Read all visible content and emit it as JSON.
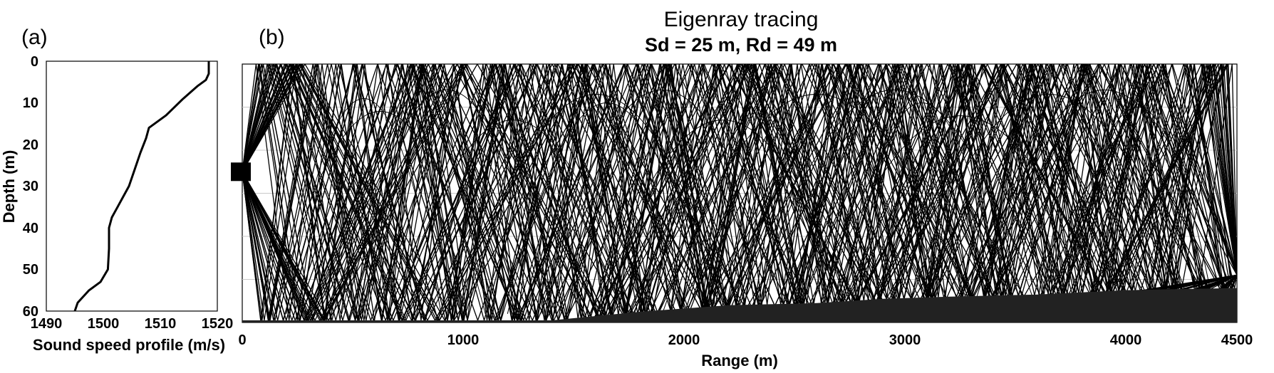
{
  "panels": {
    "a": {
      "label": "(a)"
    },
    "b": {
      "label": "(b)"
    }
  },
  "chart_data": [
    {
      "panel": "a",
      "type": "line",
      "title": "",
      "xlabel": "Sound speed profile (m/s)",
      "ylabel": "Depth (m)",
      "xlim": [
        1490,
        1520
      ],
      "ylim": [
        60,
        0
      ],
      "y_inverted": true,
      "xticks": [
        "1490",
        "1500",
        "1510",
        "1520"
      ],
      "yticks": [
        "0",
        "10",
        "20",
        "30",
        "40",
        "50",
        "60"
      ],
      "grid": false,
      "series": [
        {
          "color": "#000000",
          "x": [
            1518.5,
            1518.5,
            1518.0,
            1516.5,
            1514.0,
            1511.0,
            1508.0,
            1507.5,
            1506.5,
            1505.5,
            1504.5,
            1503.5,
            1502.5,
            1501.5,
            1501.0,
            1501.0,
            1500.8,
            1499.5,
            1497.5,
            1495.5,
            1495.0
          ],
          "y": [
            0,
            3,
            4.5,
            6,
            9,
            13,
            16,
            18.5,
            22,
            26,
            30,
            32.5,
            35,
            37.5,
            40,
            45,
            50,
            53,
            55,
            58,
            60
          ]
        }
      ]
    },
    {
      "panel": "b",
      "type": "line",
      "title": "Eigenray tracing",
      "subtitle": "Sd = 25 m, Rd = 49 m",
      "xlabel": "Range (m)",
      "ylabel": "",
      "xlim": [
        0,
        4500
      ],
      "ylim": [
        60,
        0
      ],
      "y_inverted": true,
      "xticks": [
        "0",
        "1000",
        "2000",
        "3000",
        "4000",
        "4500"
      ],
      "grid": true,
      "source": {
        "range_m": 0,
        "depth_m": 25
      },
      "receiver": {
        "range_m": 4500,
        "depth_m": 49
      },
      "bathymetry": {
        "range": [
          0,
          1400,
          1800,
          2200,
          2600,
          2900,
          3200,
          3600,
          4000,
          4500
        ],
        "depth": [
          59.5,
          59.5,
          57.5,
          56,
          55.5,
          54.5,
          54,
          53.5,
          52.5,
          52
        ]
      },
      "ray_color": "#000000",
      "bottom_color": "#222222",
      "ray_count_note": ""
    }
  ]
}
